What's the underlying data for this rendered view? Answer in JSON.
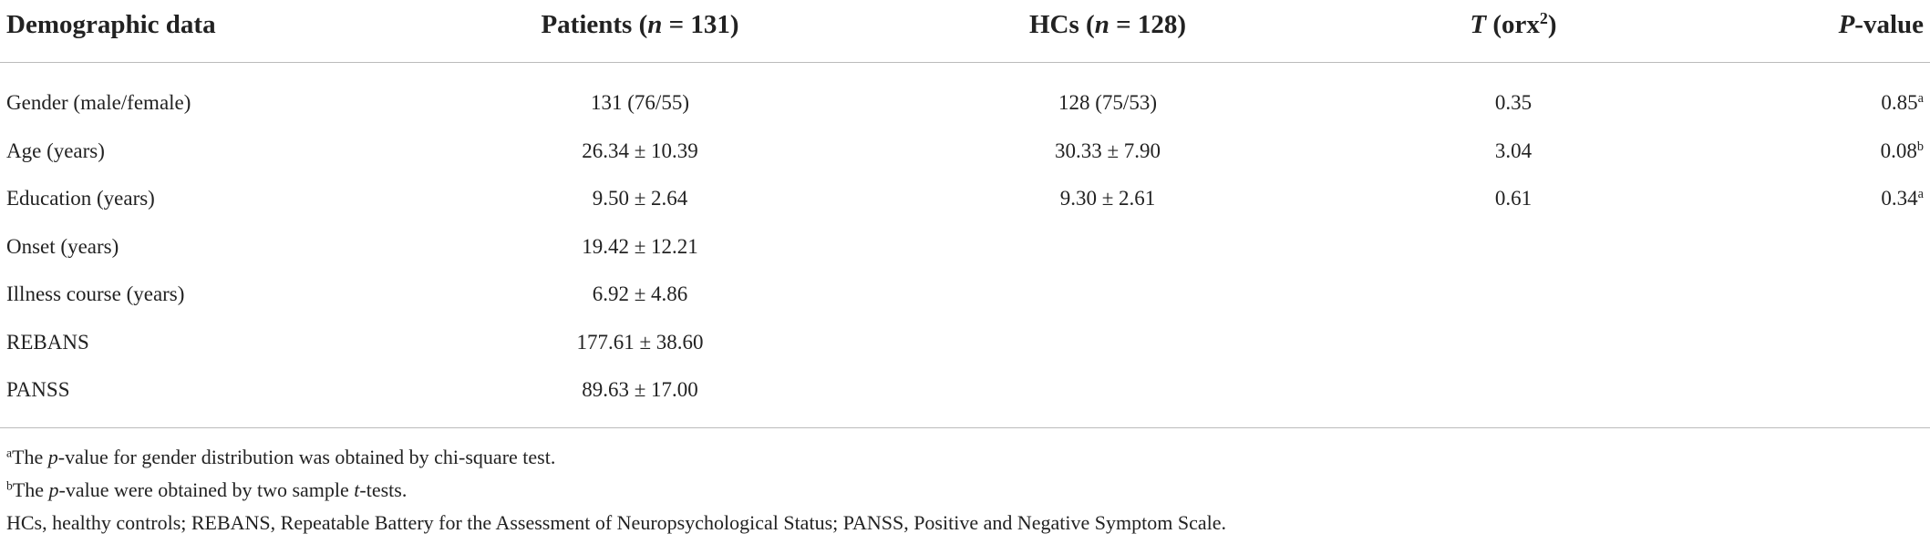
{
  "table": {
    "header": [
      [
        {
          "t": "Demographic data"
        }
      ],
      [
        {
          "t": "Patients ("
        },
        {
          "t": "n",
          "i": true
        },
        {
          "t": " = 131)"
        }
      ],
      [
        {
          "t": "HCs ("
        },
        {
          "t": "n",
          "i": true
        },
        {
          "t": " = 128)"
        }
      ],
      [
        {
          "t": "T",
          "i": true
        },
        {
          "t": " (orx"
        },
        {
          "t": "2",
          "sup": true
        },
        {
          "t": ")"
        }
      ],
      [
        {
          "t": "P",
          "i": true
        },
        {
          "t": "-value"
        }
      ]
    ],
    "rows": [
      [
        {
          "text": "Gender (male/female)"
        },
        {
          "text": "131 (76/55)"
        },
        {
          "text": "128 (75/53)"
        },
        {
          "text": "0.35"
        },
        {
          "text": "0.85",
          "sup": "a"
        }
      ],
      [
        {
          "text": "Age (years)"
        },
        {
          "text": "26.34 ± 10.39"
        },
        {
          "text": "30.33 ± 7.90"
        },
        {
          "text": "3.04"
        },
        {
          "text": "0.08",
          "sup": "b"
        }
      ],
      [
        {
          "text": "Education (years)"
        },
        {
          "text": "9.50 ± 2.64"
        },
        {
          "text": "9.30 ± 2.61"
        },
        {
          "text": "0.61"
        },
        {
          "text": "0.34",
          "sup": "a"
        }
      ],
      [
        {
          "text": "Onset (years)"
        },
        {
          "text": "19.42 ± 12.21"
        }
      ],
      [
        {
          "text": "Illness course (years)"
        },
        {
          "text": "6.92 ± 4.86"
        }
      ],
      [
        {
          "text": "REBANS"
        },
        {
          "text": "177.61 ± 38.60"
        }
      ],
      [
        {
          "text": "PANSS"
        },
        {
          "text": "89.63 ± 17.00"
        }
      ]
    ],
    "footnotes": [
      [
        {
          "t": "a",
          "sup": true
        },
        {
          "t": "The "
        },
        {
          "t": "p",
          "i": true
        },
        {
          "t": "-value for gender distribution was obtained by chi-square test."
        }
      ],
      [
        {
          "t": "b",
          "sup": true
        },
        {
          "t": "The "
        },
        {
          "t": "p",
          "i": true
        },
        {
          "t": "-value were obtained by two sample "
        },
        {
          "t": "t",
          "i": true
        },
        {
          "t": "-tests."
        }
      ],
      [
        {
          "t": "HCs, healthy controls; REBANS, Repeatable Battery for the Assessment of Neuropsychological Status; PANSS, Positive and Negative Symptom Scale."
        }
      ]
    ]
  }
}
